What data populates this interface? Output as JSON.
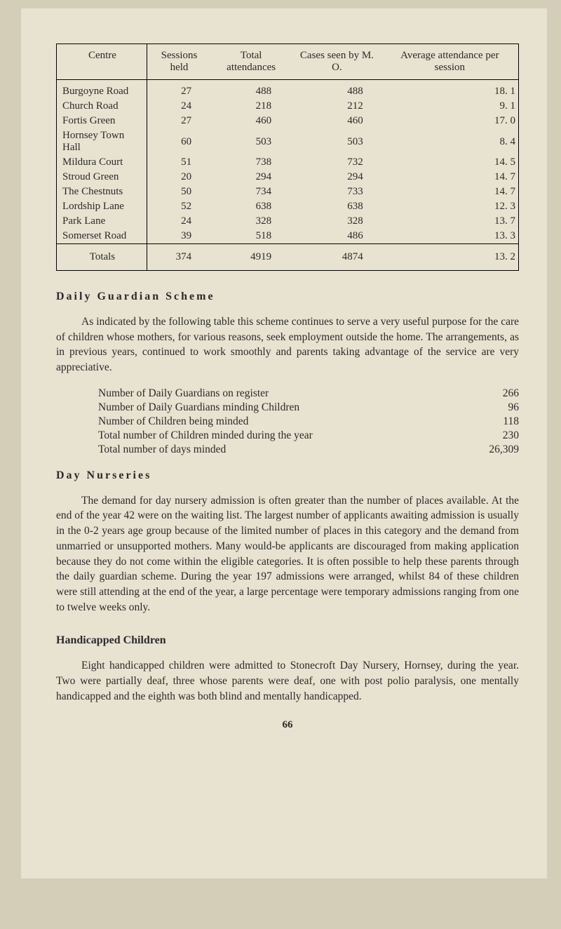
{
  "table": {
    "headers": [
      "Centre",
      "Sessions held",
      "Total attendances",
      "Cases seen by M. O.",
      "Average attendance per session"
    ],
    "rows": [
      [
        "Burgoyne Road",
        "27",
        "488",
        "488",
        "18. 1"
      ],
      [
        "Church Road",
        "24",
        "218",
        "212",
        "9. 1"
      ],
      [
        "Fortis Green",
        "27",
        "460",
        "460",
        "17. 0"
      ],
      [
        "Hornsey Town Hall",
        "60",
        "503",
        "503",
        "8. 4"
      ],
      [
        "Mildura Court",
        "51",
        "738",
        "732",
        "14. 5"
      ],
      [
        "Stroud Green",
        "20",
        "294",
        "294",
        "14. 7"
      ],
      [
        "The Chestnuts",
        "50",
        "734",
        "733",
        "14. 7"
      ],
      [
        "Lordship Lane",
        "52",
        "638",
        "638",
        "12. 3"
      ],
      [
        "Park Lane",
        "24",
        "328",
        "328",
        "13. 7"
      ],
      [
        "Somerset Road",
        "39",
        "518",
        "486",
        "13. 3"
      ]
    ],
    "totals": [
      "Totals",
      "374",
      "4919",
      "4874",
      "13. 2"
    ]
  },
  "guardian": {
    "heading": "Daily Guardian Scheme",
    "para": "As indicated by the following table this scheme continues to serve a very useful purpose for the care of children whose mothers, for various reasons, seek employment outside the home. The arrangements, as in previous years, continued to work smoothly and parents taking advantage of the service are very appreciative.",
    "stats": [
      [
        "Number of Daily Guardians on register",
        "266"
      ],
      [
        "Number of Daily Guardians minding Children",
        "96"
      ],
      [
        "Number of Children being minded",
        "118"
      ],
      [
        "Total number of Children minded during the year",
        "230"
      ],
      [
        "Total number of days minded",
        "26,309"
      ]
    ]
  },
  "nurseries": {
    "heading": "Day Nurseries",
    "para": "The demand for day nursery admission is often greater than the number of places available. At the end of the year 42 were on the waiting list. The largest number of applicants awaiting admission is usually in the 0-2 years age group because of the limited number of places in this category and the demand from unmarried or unsupported mothers. Many would-be applicants are discouraged from making application because they do not come within the eligible categories. It is often possible to help these parents through the daily guardian scheme. During the year 197 admissions were arranged, whilst 84 of these children were still attending at the end of the year, a large percentage were temporary admissions ranging from one to twelve weeks only."
  },
  "handicapped": {
    "heading": "Handicapped Children",
    "para": "Eight handicapped children were admitted to Stonecroft Day Nursery, Hornsey, during the year. Two were partially deaf, three whose parents were deaf, one with post polio paralysis, one mentally handicapped and the eighth was both blind and mentally handicapped."
  },
  "pagenum": "66"
}
